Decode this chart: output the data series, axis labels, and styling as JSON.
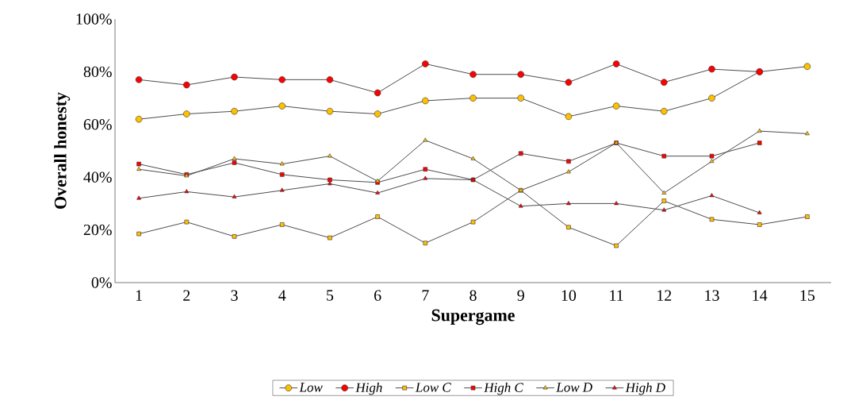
{
  "chart_data": {
    "type": "line",
    "xlabel": "Supergame",
    "ylabel": "Overall honesty",
    "categories": [
      "1",
      "2",
      "3",
      "4",
      "5",
      "6",
      "7",
      "8",
      "9",
      "10",
      "11",
      "12",
      "13",
      "14",
      "15"
    ],
    "series": [
      {
        "name": "Low",
        "color": "#ffc000",
        "marker": "circle",
        "values": [
          62,
          64,
          65,
          67,
          65,
          64,
          69,
          70,
          70,
          63,
          67,
          65,
          70,
          80,
          82
        ]
      },
      {
        "name": "High",
        "color": "#ff0000",
        "marker": "circle",
        "values": [
          77,
          75,
          78,
          77,
          77,
          72,
          83,
          79,
          79,
          76,
          83,
          76,
          81,
          80,
          null
        ]
      },
      {
        "name": "Low C",
        "color": "#ffc000",
        "marker": "square",
        "values": [
          18.5,
          23,
          17.5,
          22,
          17,
          25,
          15,
          23,
          35,
          21,
          14,
          31,
          24,
          22,
          25
        ]
      },
      {
        "name": "High C",
        "color": "#ff0000",
        "marker": "square",
        "values": [
          45,
          41,
          45.5,
          41,
          39,
          38,
          43,
          39,
          49,
          46,
          53,
          48,
          48,
          53,
          null
        ]
      },
      {
        "name": "Low D",
        "color": "#ffc000",
        "marker": "triangle",
        "values": [
          43,
          40.5,
          47,
          45,
          48,
          38.5,
          54,
          47,
          35,
          42,
          53,
          34,
          46,
          57.5,
          56.5
        ]
      },
      {
        "name": "High D",
        "color": "#ff0000",
        "marker": "triangle",
        "values": [
          32,
          34.5,
          32.5,
          35,
          37.5,
          34,
          39.5,
          39,
          29,
          30,
          30,
          27.5,
          33,
          26.5,
          null
        ]
      }
    ],
    "ylim": [
      0,
      100
    ],
    "yticks": [
      {
        "value": 0,
        "label": "0%"
      },
      {
        "value": 20,
        "label": "20%"
      },
      {
        "value": 40,
        "label": "40%"
      },
      {
        "value": 60,
        "label": "60%"
      },
      {
        "value": 80,
        "label": "80%"
      },
      {
        "value": 100,
        "label": "100%"
      }
    ],
    "grid": false,
    "legend": "bottom"
  }
}
